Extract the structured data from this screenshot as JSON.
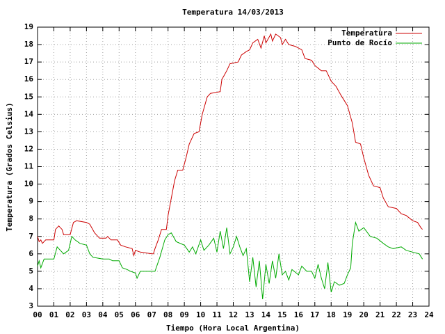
{
  "chart_data": {
    "type": "line",
    "title": "Temperatura 14/03/2013",
    "x_label": "Tiempo (Hora Local Argentina)",
    "y_label": "Temperatura (Grados Celsius)",
    "xlim": [
      0,
      24
    ],
    "xticks": [
      {
        "value": 0,
        "label": "00"
      },
      {
        "value": 1,
        "label": "01"
      },
      {
        "value": 2,
        "label": "02"
      },
      {
        "value": 3,
        "label": "03"
      },
      {
        "value": 4,
        "label": "04"
      },
      {
        "value": 5,
        "label": "05"
      },
      {
        "value": 6,
        "label": "06"
      },
      {
        "value": 7,
        "label": "07"
      },
      {
        "value": 8,
        "label": "08"
      },
      {
        "value": 9,
        "label": "09"
      },
      10,
      11,
      12,
      13,
      14,
      15,
      16,
      17,
      18,
      19,
      20,
      21,
      22,
      23,
      24
    ],
    "ylim": [
      3,
      19
    ],
    "yticks": [
      3,
      4,
      5,
      6,
      7,
      8,
      9,
      10,
      11,
      12,
      13,
      14,
      15,
      16,
      17,
      18,
      19
    ],
    "grid": true,
    "legend": "top-right",
    "series": [
      {
        "name": "Temperatura",
        "color": "#cc0000",
        "x": [
          0,
          0.1,
          0.2,
          0.3,
          0.5,
          1.0,
          1.1,
          1.3,
          1.5,
          1.6,
          2.0,
          2.2,
          2.4,
          3.0,
          3.2,
          3.5,
          3.8,
          4.2,
          4.3,
          4.5,
          4.9,
          5.1,
          5.4,
          5.8,
          5.9,
          6.0,
          6.3,
          7.0,
          7.1,
          7.2,
          7.4,
          7.6,
          7.9,
          8.0,
          8.2,
          8.4,
          8.6,
          8.9,
          9.1,
          9.3,
          9.6,
          9.9,
          10.1,
          10.4,
          10.6,
          11.2,
          11.3,
          11.6,
          11.8,
          12.3,
          12.5,
          12.8,
          13.0,
          13.2,
          13.5,
          13.7,
          13.9,
          14.0,
          14.3,
          14.4,
          14.6,
          14.9,
          15.0,
          15.2,
          15.4,
          15.8,
          16.2,
          16.4,
          16.8,
          17.0,
          17.4,
          17.7,
          18.0,
          18.3,
          18.6,
          19.0,
          19.3,
          19.5,
          19.8,
          20.0,
          20.3,
          20.6,
          21.0,
          21.2,
          21.5,
          22.0,
          22.3,
          22.6,
          23.0,
          23.3,
          23.5,
          23.6
        ],
        "values": [
          7.0,
          6.7,
          6.8,
          6.6,
          6.8,
          6.8,
          7.4,
          7.6,
          7.4,
          7.1,
          7.1,
          7.8,
          7.9,
          7.8,
          7.7,
          7.2,
          6.9,
          6.9,
          7.0,
          6.8,
          6.8,
          6.5,
          6.4,
          6.3,
          5.9,
          6.2,
          6.1,
          6.0,
          6.0,
          6.3,
          6.8,
          7.4,
          7.4,
          8.2,
          9.2,
          10.2,
          10.8,
          10.8,
          11.5,
          12.3,
          12.9,
          13.0,
          14.0,
          15.0,
          15.2,
          15.3,
          16.0,
          16.5,
          16.9,
          17.0,
          17.4,
          17.6,
          17.7,
          18.1,
          18.3,
          17.8,
          18.5,
          18.1,
          18.6,
          18.2,
          18.6,
          18.4,
          18.0,
          18.3,
          18.0,
          17.9,
          17.7,
          17.2,
          17.1,
          16.8,
          16.5,
          16.5,
          15.9,
          15.6,
          15.1,
          14.5,
          13.5,
          12.4,
          12.3,
          11.5,
          10.5,
          9.9,
          9.8,
          9.2,
          8.7,
          8.6,
          8.3,
          8.2,
          7.9,
          7.8,
          7.5,
          7.4
        ]
      },
      {
        "name": "Punto de Rocío",
        "color": "#00aa00",
        "x": [
          0,
          0.1,
          0.2,
          0.4,
          1.0,
          1.2,
          1.4,
          1.6,
          1.9,
          2.1,
          2.3,
          2.6,
          3.0,
          3.2,
          3.4,
          4.0,
          4.4,
          4.6,
          5.0,
          5.2,
          5.5,
          5.7,
          6.0,
          6.1,
          6.3,
          7.0,
          7.2,
          7.5,
          7.8,
          8.0,
          8.2,
          8.5,
          9.0,
          9.3,
          9.5,
          9.7,
          10.0,
          10.2,
          10.5,
          10.8,
          11.0,
          11.2,
          11.4,
          11.6,
          11.8,
          12.0,
          12.2,
          12.4,
          12.6,
          12.8,
          13.0,
          13.2,
          13.4,
          13.6,
          13.8,
          14.0,
          14.2,
          14.4,
          14.6,
          14.8,
          15.0,
          15.2,
          15.4,
          15.6,
          16.0,
          16.2,
          16.5,
          16.8,
          17.0,
          17.2,
          17.4,
          17.6,
          17.8,
          18.0,
          18.2,
          18.5,
          18.8,
          19.0,
          19.2,
          19.3,
          19.5,
          19.7,
          20.0,
          20.4,
          20.8,
          21.2,
          21.5,
          21.8,
          22.3,
          22.6,
          23.0,
          23.4,
          23.6
        ],
        "values": [
          5.3,
          5.6,
          5.2,
          5.7,
          5.7,
          6.4,
          6.2,
          6.0,
          6.2,
          7.0,
          6.8,
          6.6,
          6.5,
          6.0,
          5.8,
          5.7,
          5.7,
          5.6,
          5.6,
          5.2,
          5.1,
          5.0,
          4.9,
          4.6,
          5.0,
          5.0,
          5.0,
          5.8,
          6.8,
          7.1,
          7.2,
          6.7,
          6.5,
          6.1,
          6.4,
          6.0,
          6.8,
          6.2,
          6.5,
          6.9,
          6.1,
          7.3,
          6.3,
          7.5,
          6.0,
          6.4,
          7.0,
          6.4,
          5.9,
          6.3,
          4.4,
          5.8,
          4.1,
          5.6,
          3.4,
          5.4,
          4.3,
          5.6,
          4.6,
          6.0,
          4.8,
          5.0,
          4.5,
          5.1,
          4.8,
          5.3,
          5.0,
          5.0,
          4.6,
          5.4,
          4.6,
          4.0,
          5.5,
          3.8,
          4.4,
          4.2,
          4.3,
          4.8,
          5.2,
          6.6,
          7.8,
          7.3,
          7.5,
          7.0,
          6.9,
          6.6,
          6.4,
          6.3,
          6.4,
          6.2,
          6.1,
          6.0,
          5.7
        ]
      }
    ]
  }
}
